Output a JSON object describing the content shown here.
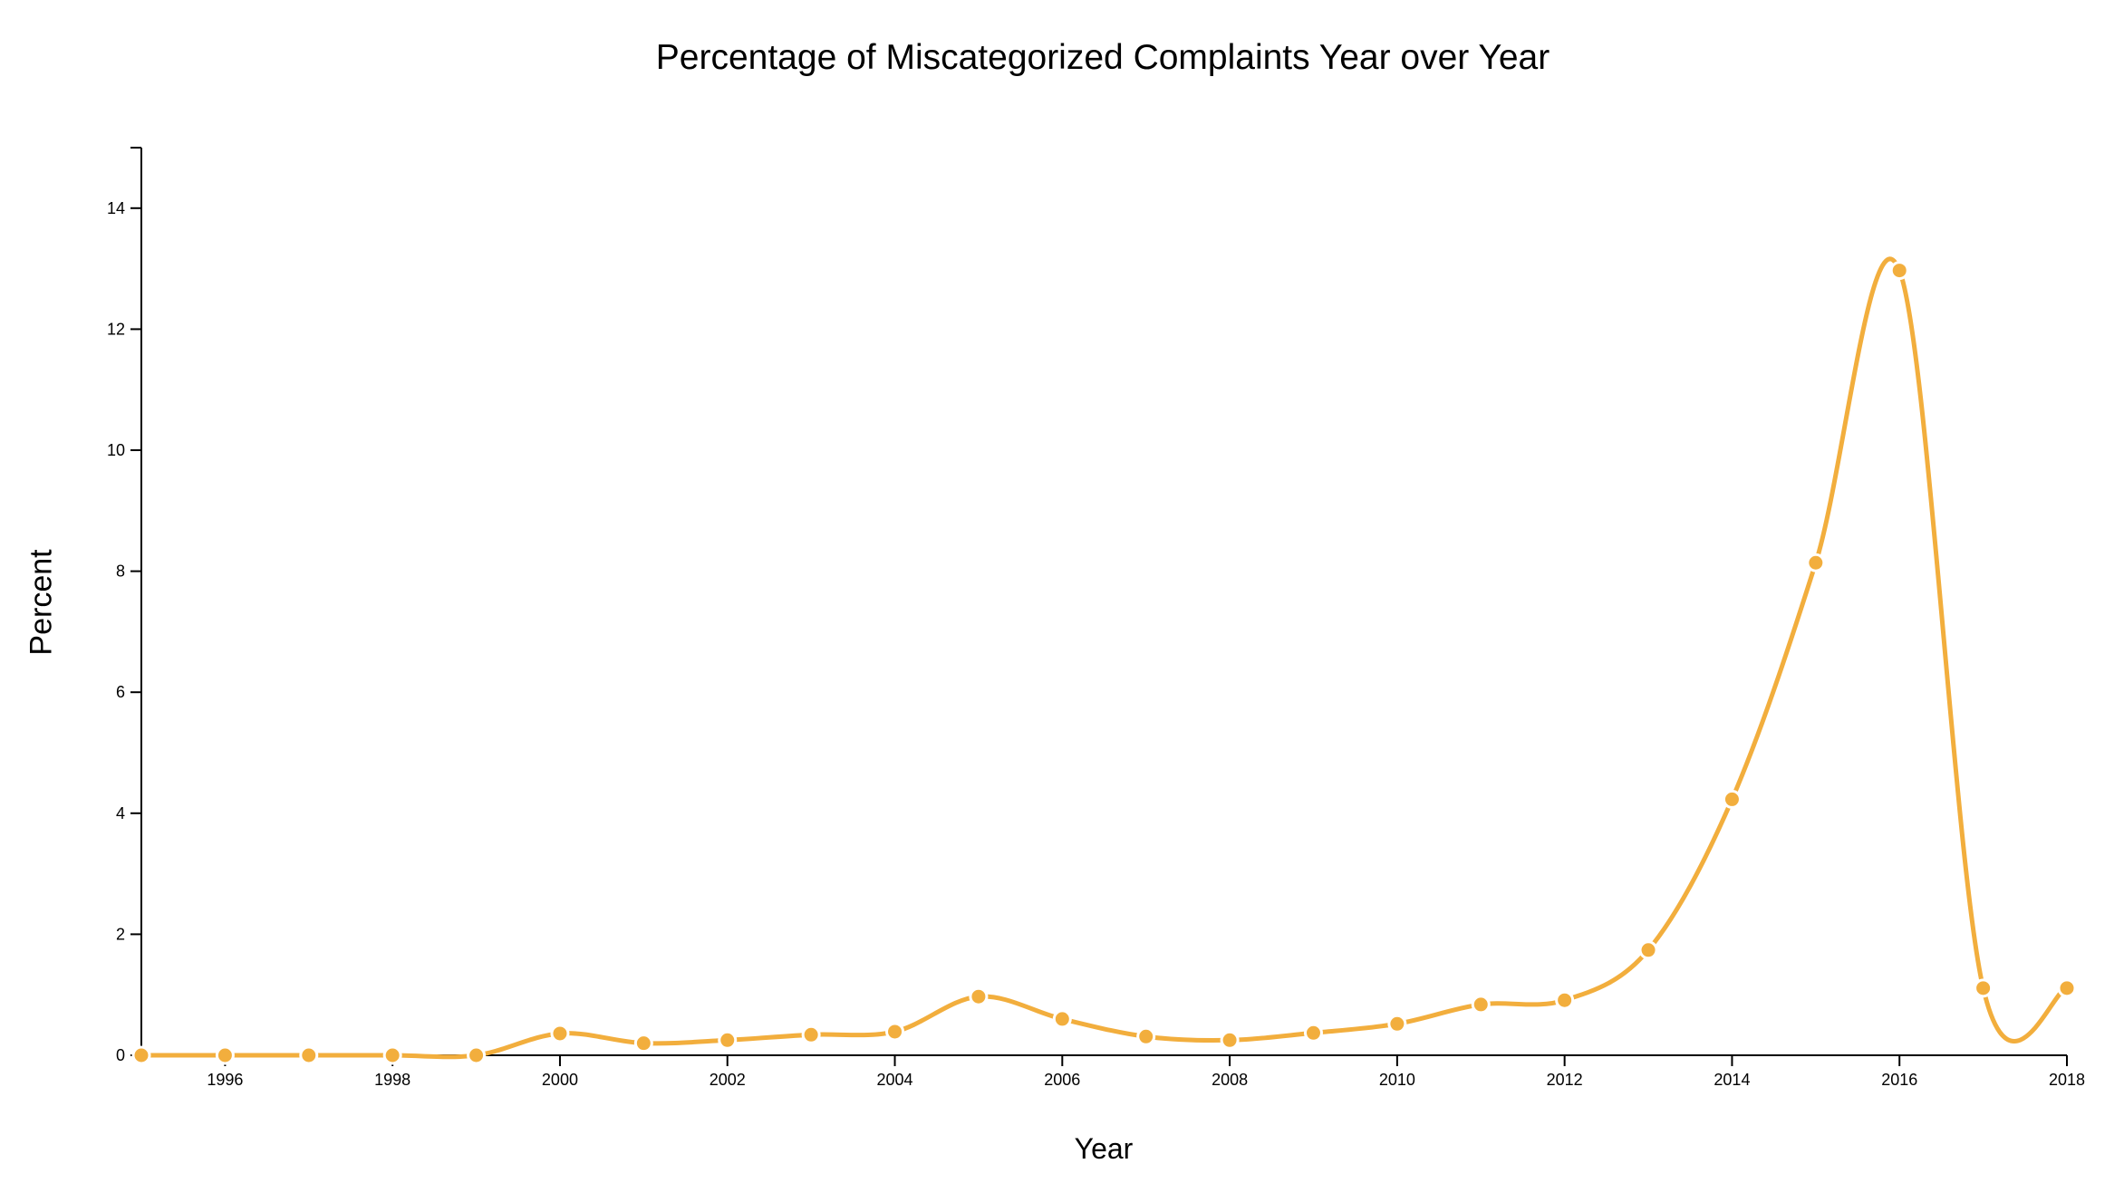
{
  "chart_data": {
    "type": "line",
    "title": "Percentage of Miscategorized Complaints Year over Year",
    "xlabel": "Year",
    "ylabel": "Percent",
    "xlim": [
      1995,
      2018
    ],
    "ylim": [
      0,
      15
    ],
    "x_ticks": [
      "1996",
      "1998",
      "2000",
      "2002",
      "2004",
      "2006",
      "2008",
      "2010",
      "2012",
      "2014",
      "2016",
      "2018"
    ],
    "y_ticks": [
      "0",
      "2",
      "4",
      "6",
      "8",
      "10",
      "12",
      "14"
    ],
    "grid": false,
    "legend": "none",
    "line_color": "#f2ae3d",
    "series": [
      {
        "x": [
          1995,
          1996,
          1997,
          1998,
          1999,
          2000,
          2001,
          2002,
          2003,
          2004,
          2005,
          2006,
          2007,
          2008,
          2009,
          2010,
          2011,
          2012,
          2013,
          2014,
          2015,
          2016,
          2017,
          2018
        ],
        "values": [
          0,
          0,
          0,
          0,
          0,
          0.36,
          0.2,
          0.25,
          0.34,
          0.39,
          0.97,
          0.6,
          0.31,
          0.25,
          0.37,
          0.52,
          0.84,
          0.91,
          1.74,
          4.23,
          8.14,
          12.97,
          1.11,
          1.11
        ]
      }
    ]
  }
}
